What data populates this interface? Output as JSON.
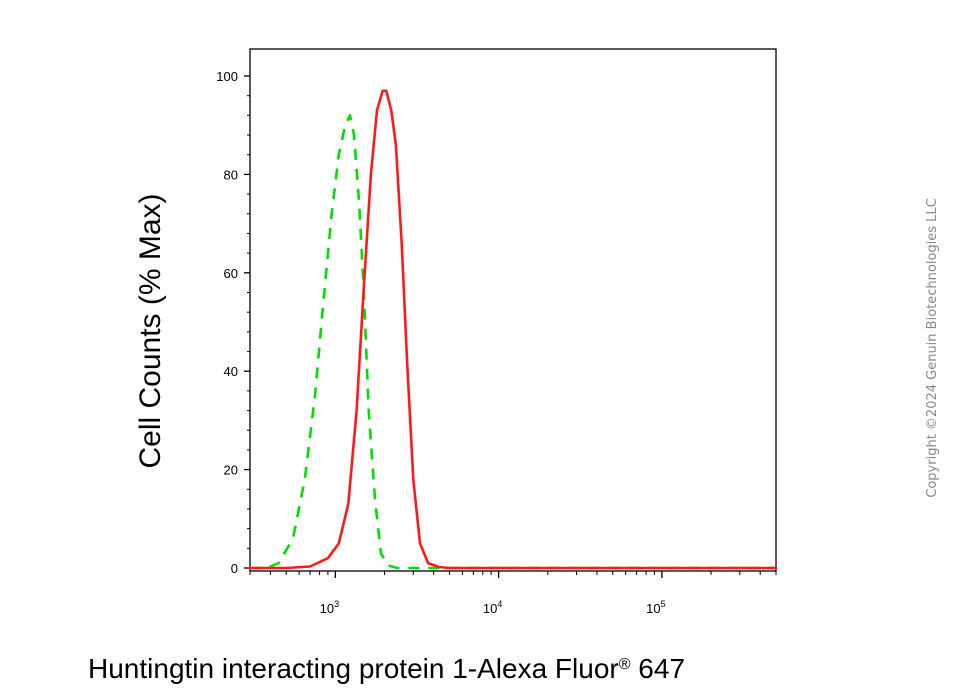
{
  "chart_data": {
    "type": "line",
    "xlabel": "Huntingtin interacting protein 1-Alexa Fluor",
    "xlabel_mark": "®",
    "xlabel_suffix": " 647",
    "ylabel": "Cell Counts (% Max)",
    "x_scale": "log",
    "xlim": [
      300,
      500000
    ],
    "ylim": [
      0,
      105
    ],
    "y_ticks": [
      0,
      20,
      40,
      60,
      80,
      100
    ],
    "x_ticks": [
      {
        "value": 1000,
        "base": "10",
        "exp": "3"
      },
      {
        "value": 10000,
        "base": "10",
        "exp": "4"
      },
      {
        "value": 100000,
        "base": "10",
        "exp": "5"
      }
    ],
    "grid": false,
    "series": [
      {
        "color": "#00e000",
        "dash": true,
        "x": [
          300,
          380,
          450,
          550,
          650,
          750,
          850,
          950,
          1050,
          1150,
          1230,
          1300,
          1400,
          1500,
          1600,
          1750,
          1900,
          2100,
          2400,
          3000,
          5000,
          10000,
          100000,
          500000
        ],
        "y": [
          0,
          0,
          1,
          6,
          18,
          35,
          55,
          72,
          84,
          90,
          92,
          88,
          74,
          55,
          32,
          14,
          3,
          0.5,
          0,
          0,
          0,
          0,
          0,
          0
        ]
      },
      {
        "color": "#ff1a1a",
        "dash": false,
        "x": [
          300,
          500,
          700,
          900,
          1050,
          1200,
          1350,
          1500,
          1650,
          1800,
          1950,
          2050,
          2200,
          2350,
          2550,
          2750,
          3000,
          3300,
          3700,
          4300,
          5000,
          10000,
          100000,
          500000
        ],
        "y": [
          0,
          0,
          0.3,
          2,
          5,
          13,
          32,
          58,
          80,
          93,
          97,
          97,
          93,
          86,
          66,
          42,
          18,
          5,
          1,
          0.2,
          0,
          0,
          0,
          0
        ]
      }
    ]
  },
  "watermark": "Copyright ©2024 Genuin Biotechnologies LLC"
}
